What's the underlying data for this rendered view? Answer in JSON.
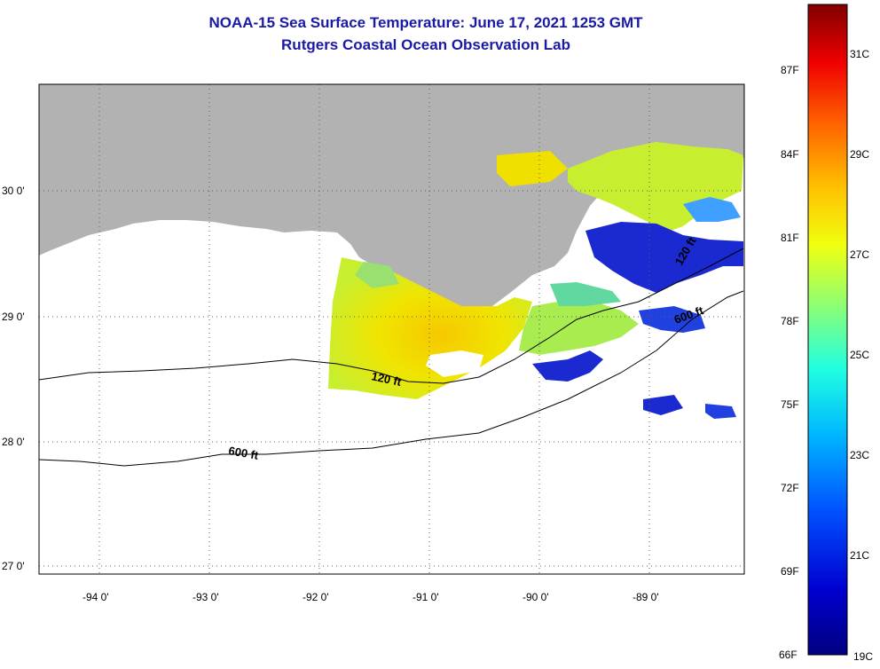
{
  "title_line1": "NOAA-15 Sea Surface Temperature:  June 17, 2021 1253 GMT",
  "title_line2": "Rutgers Coastal Ocean Observation Lab",
  "map": {
    "lat_labels": [
      "30 0'",
      "29 0'",
      "28 0'",
      "27 0'"
    ],
    "lon_labels": [
      "-94 0'",
      "-93 0'",
      "-92 0'",
      "-91 0'",
      "-90 0'",
      "-89 0'"
    ],
    "contours": [
      "120 ft",
      "600 ft",
      "120 ft",
      "600 ft"
    ],
    "land_color": "#b2b2b2",
    "grid": "dotted"
  },
  "colorbar": {
    "f_labels": [
      "87F",
      "84F",
      "81F",
      "78F",
      "75F",
      "72F",
      "69F",
      "66F"
    ],
    "c_labels": [
      "31C",
      "29C",
      "27C",
      "25C",
      "23C",
      "21C",
      "19C"
    ],
    "colors": [
      "#00008b",
      "#0000ff",
      "#0080ff",
      "#00e0ff",
      "#40ffbf",
      "#c0ff40",
      "#ffff00",
      "#ffc000",
      "#ff8000",
      "#ff2000",
      "#c00000",
      "#800000"
    ]
  }
}
